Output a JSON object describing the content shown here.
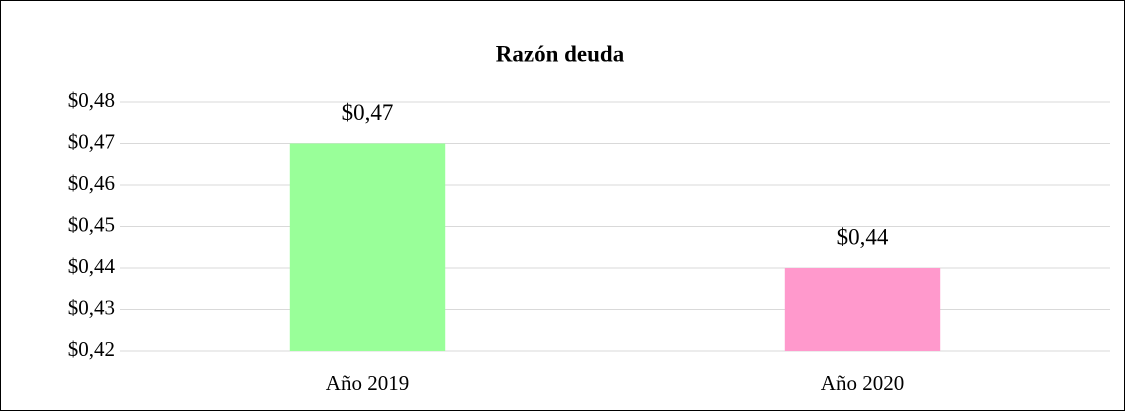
{
  "chart_data": {
    "type": "bar",
    "title": "Razón deuda",
    "categories": [
      "Año 2019",
      "Año 2020"
    ],
    "values": [
      0.47,
      0.44
    ],
    "value_labels": [
      "$0,47",
      "$0,44"
    ],
    "colors": [
      "#99ff99",
      "#ff99cc"
    ],
    "ylim": [
      0.42,
      0.48
    ],
    "yticks": [
      {
        "value": 0.42,
        "label": "$0,42"
      },
      {
        "value": 0.43,
        "label": "$0,43"
      },
      {
        "value": 0.44,
        "label": "$0,44"
      },
      {
        "value": 0.45,
        "label": "$0,45"
      },
      {
        "value": 0.46,
        "label": "$0,46"
      },
      {
        "value": 0.47,
        "label": "$0,47"
      },
      {
        "value": 0.48,
        "label": "$0,48"
      }
    ],
    "grid": true
  }
}
